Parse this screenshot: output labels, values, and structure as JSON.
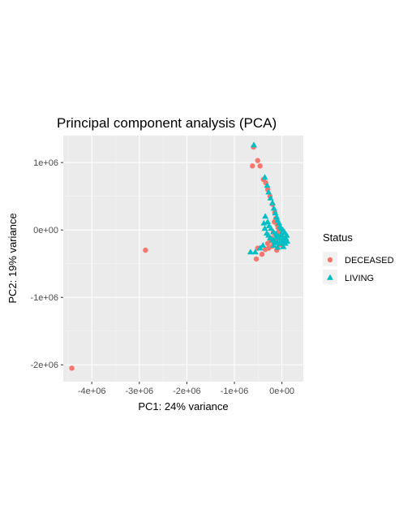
{
  "chart_data": {
    "type": "scatter",
    "title": "Principal component analysis (PCA)",
    "xlabel": "PC1: 24% variance",
    "ylabel": "PC2: 19% variance",
    "xlim": [
      -4600000,
      450000
    ],
    "ylim": [
      -2250000,
      1400000
    ],
    "x_ticks": [
      -4000000,
      -3000000,
      -2000000,
      -1000000,
      0
    ],
    "x_tick_labels": [
      "-4e+06",
      "-3e+06",
      "-2e+06",
      "-1e+06",
      "0e+00"
    ],
    "y_ticks": [
      -2000000,
      -1000000,
      0,
      1000000
    ],
    "y_tick_labels": [
      "-2e+06",
      "-1e+06",
      "0e+00",
      "1e+06"
    ],
    "grid": true,
    "legend": {
      "title": "Status",
      "position": "right"
    },
    "series": [
      {
        "name": "DECEASED",
        "color": "#F8766D",
        "marker": "circle",
        "points": [
          [
            -4420000,
            -2050000
          ],
          [
            -2870000,
            -300000
          ],
          [
            -600000,
            1230000
          ],
          [
            -510000,
            1030000
          ],
          [
            -460000,
            950000
          ],
          [
            -620000,
            950000
          ],
          [
            -390000,
            750000
          ],
          [
            -340000,
            700000
          ],
          [
            -300000,
            600000
          ],
          [
            -250000,
            500000
          ],
          [
            -200000,
            380000
          ],
          [
            -150000,
            260000
          ],
          [
            -130000,
            170000
          ],
          [
            -100000,
            80000
          ],
          [
            -80000,
            30000
          ],
          [
            -180000,
            -40000
          ],
          [
            -220000,
            -120000
          ],
          [
            -300000,
            -200000
          ],
          [
            -510000,
            -270000
          ],
          [
            -420000,
            -360000
          ],
          [
            -540000,
            -430000
          ],
          [
            -110000,
            -300000
          ],
          [
            -30000,
            -220000
          ],
          [
            -90000,
            -120000
          ],
          [
            -200000,
            -240000
          ],
          [
            -280000,
            -270000
          ],
          [
            -60000,
            -20000
          ],
          [
            -160000,
            120000
          ],
          [
            -240000,
            -160000
          ],
          [
            -350000,
            -290000
          ]
        ]
      },
      {
        "name": "LIVING",
        "color": "#00BFC4",
        "marker": "triangle",
        "points": [
          [
            -590000,
            1260000
          ],
          [
            -360000,
            780000
          ],
          [
            -310000,
            660000
          ],
          [
            -280000,
            560000
          ],
          [
            -240000,
            470000
          ],
          [
            -200000,
            400000
          ],
          [
            -170000,
            320000
          ],
          [
            -140000,
            250000
          ],
          [
            -110000,
            190000
          ],
          [
            -90000,
            140000
          ],
          [
            -60000,
            100000
          ],
          [
            -40000,
            50000
          ],
          [
            -20000,
            20000
          ],
          [
            -350000,
            200000
          ],
          [
            -380000,
            100000
          ],
          [
            -360000,
            20000
          ],
          [
            -320000,
            -50000
          ],
          [
            -280000,
            -80000
          ],
          [
            -250000,
            -120000
          ],
          [
            -200000,
            -150000
          ],
          [
            -150000,
            -170000
          ],
          [
            -100000,
            -190000
          ],
          [
            -50000,
            -200000
          ],
          [
            0,
            -180000
          ],
          [
            40000,
            -150000
          ],
          [
            80000,
            -120000
          ],
          [
            100000,
            -80000
          ],
          [
            60000,
            -40000
          ],
          [
            20000,
            0
          ],
          [
            -10000,
            -60000
          ],
          [
            -70000,
            -100000
          ],
          [
            -120000,
            -60000
          ],
          [
            -180000,
            -30000
          ],
          [
            -230000,
            20000
          ],
          [
            -270000,
            60000
          ],
          [
            -300000,
            120000
          ],
          [
            -660000,
            -330000
          ],
          [
            -560000,
            -330000
          ],
          [
            -400000,
            -230000
          ],
          [
            -460000,
            -270000
          ],
          [
            -130000,
            -110000
          ],
          [
            10000,
            -110000
          ],
          [
            70000,
            -200000
          ],
          [
            30000,
            -250000
          ],
          [
            -90000,
            -260000
          ],
          [
            -170000,
            -230000
          ],
          [
            -30000,
            -130000
          ],
          [
            110000,
            -170000
          ]
        ]
      }
    ]
  }
}
